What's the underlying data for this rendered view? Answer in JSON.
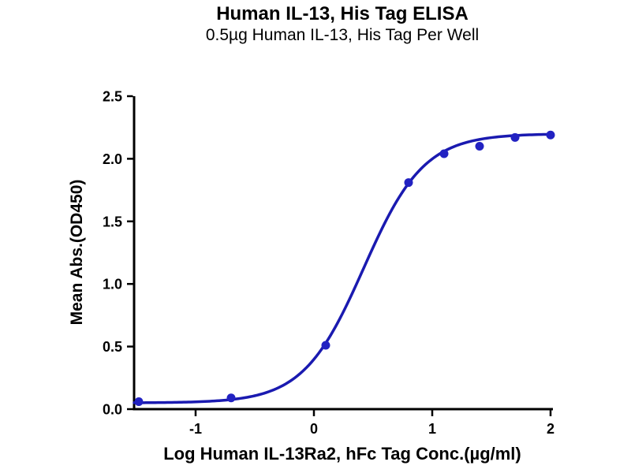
{
  "page": {
    "background": "#ffffff"
  },
  "chart_data": {
    "type": "scatter",
    "title": "Human IL-13, His Tag ELISA",
    "subtitle": "0.5µg Human IL-13, His Tag Per Well",
    "xlabel": "Log Human IL-13Ra2, hFc Tag Conc.(µg/ml)",
    "ylabel": "Mean Abs.(OD450)",
    "xlim": [
      -1.52,
      2.0
    ],
    "ylim": [
      0,
      2.5
    ],
    "x_ticks": [
      -1,
      0,
      1,
      2
    ],
    "x_tick_labels": [
      "-1",
      "0",
      "1",
      "2"
    ],
    "y_ticks": [
      0,
      0.5,
      1.0,
      1.5,
      2.0,
      2.5
    ],
    "y_tick_labels": [
      "0.0",
      "0.5",
      "1.0",
      "1.5",
      "2.0",
      "2.5"
    ],
    "points": {
      "x": [
        -1.48,
        -0.7,
        0.1,
        0.8,
        1.1,
        1.4,
        1.7,
        2.0
      ],
      "y": [
        0.06,
        0.09,
        0.51,
        1.81,
        2.04,
        2.1,
        2.17,
        2.19
      ]
    },
    "fit_curve": {
      "model": "4PL",
      "bottom": 0.05,
      "top": 2.2,
      "log_ec50": 0.42,
      "hill": 1.7,
      "x_start": -1.52,
      "x_end": 2.0
    },
    "grid": false,
    "legend": null,
    "colors": {
      "line": "#1a1ab0",
      "point": "#2222c2",
      "axis": "#000000",
      "text": "#000000"
    }
  }
}
